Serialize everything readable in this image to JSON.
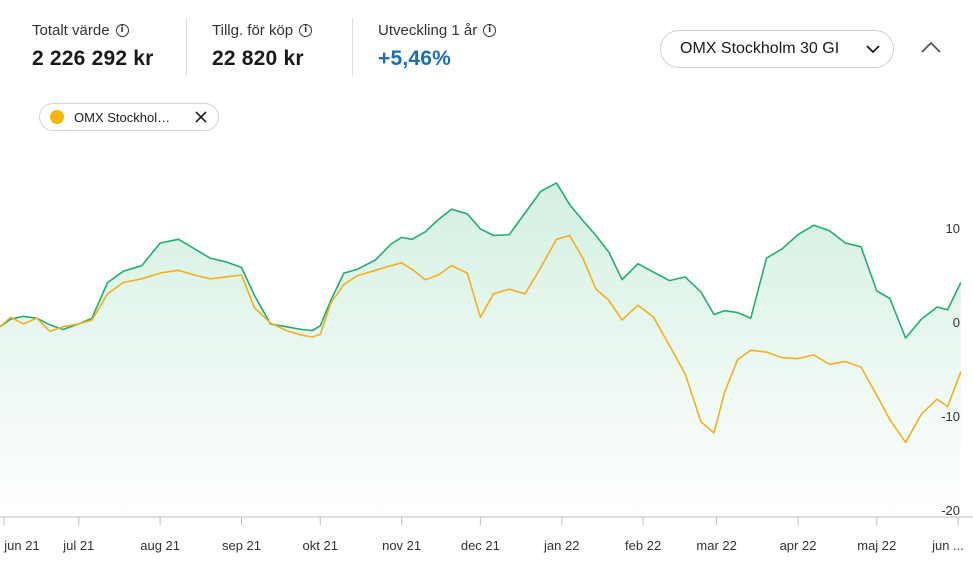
{
  "summary": {
    "total_label": "Totalt värde",
    "total_value": "2 226 292 kr",
    "available_label": "Tillg. för köp",
    "available_value": "22 820 kr",
    "growth_label": "Utveckling 1 år",
    "growth_value": "+5,46%"
  },
  "index_select": {
    "selected": "OMX Stockholm 30 GI"
  },
  "chip": {
    "label": "OMX Stockhol…",
    "color": "#f5b50b"
  },
  "colors": {
    "portfolio": "#1fae73",
    "index": "#f2b01e",
    "fill": "#e4f6ee",
    "positive": "#1a6fb8"
  },
  "icons": {
    "info": "info-icon",
    "dropdown": "chevron-down-icon",
    "collapse": "chevron-up-icon",
    "remove": "close-icon"
  },
  "chart_data": {
    "type": "line",
    "x": [
      "2021-06-01",
      "2021-06-05",
      "2021-06-10",
      "2021-06-15",
      "2021-06-20",
      "2021-06-25",
      "2021-07-01",
      "2021-07-06",
      "2021-07-12",
      "2021-07-18",
      "2021-07-25",
      "2021-08-01",
      "2021-08-08",
      "2021-08-14",
      "2021-08-20",
      "2021-08-26",
      "2021-09-01",
      "2021-09-06",
      "2021-09-12",
      "2021-09-18",
      "2021-09-24",
      "2021-09-28",
      "2021-10-01",
      "2021-10-05",
      "2021-10-10",
      "2021-10-15",
      "2021-10-22",
      "2021-10-28",
      "2021-11-01",
      "2021-11-05",
      "2021-11-10",
      "2021-11-15",
      "2021-11-20",
      "2021-11-26",
      "2021-12-01",
      "2021-12-06",
      "2021-12-12",
      "2021-12-18",
      "2021-12-24",
      "2021-12-30",
      "2022-01-04",
      "2022-01-09",
      "2022-01-14",
      "2022-01-19",
      "2022-01-24",
      "2022-01-30",
      "2022-02-05",
      "2022-02-11",
      "2022-02-17",
      "2022-02-23",
      "2022-02-28",
      "2022-03-04",
      "2022-03-09",
      "2022-03-14",
      "2022-03-20",
      "2022-03-26",
      "2022-04-01",
      "2022-04-07",
      "2022-04-13",
      "2022-04-19",
      "2022-04-25",
      "2022-05-01",
      "2022-05-06",
      "2022-05-12",
      "2022-05-18",
      "2022-05-24",
      "2022-05-28",
      "2022-06-02"
    ],
    "series": [
      {
        "values": [
          -0.5,
          0.3,
          0.6,
          0.4,
          -0.3,
          -0.8,
          -0.2,
          0.4,
          4.2,
          5.4,
          6.0,
          8.4,
          8.8,
          7.8,
          6.8,
          6.4,
          5.8,
          2.8,
          -0.2,
          -0.5,
          -0.8,
          -0.9,
          -0.4,
          2.3,
          5.2,
          5.6,
          6.6,
          8.3,
          9.0,
          8.8,
          9.6,
          10.9,
          12.0,
          11.5,
          9.9,
          9.2,
          9.3,
          11.6,
          13.9,
          14.8,
          12.5,
          10.8,
          9.2,
          7.4,
          4.5,
          6.2,
          5.3,
          4.4,
          4.8,
          3.2,
          0.8,
          1.2,
          1.0,
          0.4,
          6.8,
          7.8,
          9.3,
          10.3,
          9.7,
          8.4,
          8.0,
          3.3,
          2.5,
          -1.7,
          0.3,
          1.6,
          1.3,
          4.2
        ]
      },
      {
        "name": "OMX Stockhol…",
        "values": [
          -0.5,
          0.5,
          -0.2,
          0.4,
          -1.0,
          -0.5,
          -0.2,
          0.2,
          3.0,
          4.2,
          4.6,
          5.2,
          5.5,
          5.0,
          4.6,
          4.8,
          5.0,
          1.5,
          -0.1,
          -0.9,
          -1.4,
          -1.6,
          -1.3,
          2.0,
          4.0,
          4.9,
          5.5,
          6.0,
          6.3,
          5.6,
          4.5,
          5.0,
          6.0,
          5.2,
          0.5,
          3.0,
          3.5,
          3.0,
          5.8,
          8.8,
          9.2,
          6.8,
          3.5,
          2.3,
          0.2,
          1.8,
          0.5,
          -2.5,
          -5.5,
          -10.6,
          -11.8,
          -7.5,
          -4.0,
          -3.0,
          -3.2,
          -3.8,
          -3.9,
          -3.5,
          -4.5,
          -4.2,
          -4.8,
          -7.8,
          -10.4,
          -12.8,
          -9.8,
          -8.2,
          -9.0,
          -5.3
        ]
      }
    ],
    "x_tick_labels": [
      "jun 21",
      "jul 21",
      "aug 21",
      "sep 21",
      "okt 21",
      "nov 21",
      "dec 21",
      "jan 22",
      "feb 22",
      "mar 22",
      "apr 22",
      "maj 22",
      "jun ..."
    ],
    "x_tick_dates": [
      "2021-06-01",
      "2021-07-01",
      "2021-08-01",
      "2021-09-01",
      "2021-10-01",
      "2021-11-01",
      "2021-12-01",
      "2022-01-01",
      "2022-02-01",
      "2022-03-01",
      "2022-04-01",
      "2022-05-01",
      "2022-06-01"
    ],
    "y_ticks": [
      10,
      0,
      -10,
      -20
    ],
    "ylim": [
      -20,
      15
    ],
    "grid": false
  }
}
